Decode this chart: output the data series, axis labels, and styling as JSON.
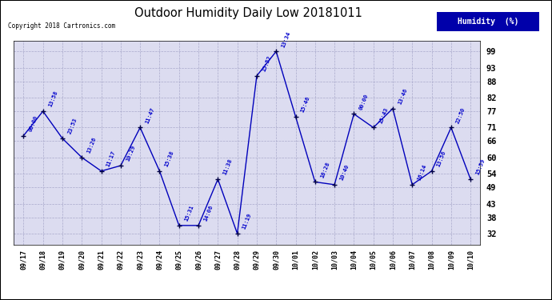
{
  "title": "Outdoor Humidity Daily Low 20181011",
  "copyright": "Copyright 2018 Cartronics.com",
  "legend_label": "Humidity  (%)",
  "x_labels": [
    "09/17",
    "09/18",
    "09/19",
    "09/20",
    "09/21",
    "09/22",
    "09/23",
    "09/24",
    "09/25",
    "09/26",
    "09/27",
    "09/28",
    "09/29",
    "09/30",
    "10/01",
    "10/02",
    "10/03",
    "10/04",
    "10/05",
    "10/06",
    "10/07",
    "10/08",
    "10/09",
    "10/10"
  ],
  "y_values": [
    68,
    77,
    67,
    60,
    55,
    57,
    71,
    55,
    35,
    35,
    52,
    32,
    90,
    99,
    75,
    51,
    50,
    76,
    71,
    78,
    50,
    55,
    71,
    52
  ],
  "time_labels": [
    "00:00",
    "13:58",
    "23:53",
    "13:26",
    "11:17",
    "10:29",
    "11:47",
    "15:38",
    "15:31",
    "14:06",
    "11:38",
    "11:19",
    "15:52",
    "13:34",
    "15:46",
    "16:28",
    "10:40",
    "00:00",
    "15:43",
    "13:46",
    "16:14",
    "13:56",
    "22:50",
    "15:59"
  ],
  "yticks": [
    32,
    38,
    43,
    49,
    54,
    60,
    66,
    71,
    77,
    82,
    88,
    93,
    99
  ],
  "ymin": 28,
  "ymax": 103,
  "line_color": "#0000bb",
  "marker_color": "#000044",
  "bg_color": "#dcdcf0",
  "grid_color": "#aaaacc",
  "text_color": "#0000cc",
  "title_color": "#000000",
  "legend_bg": "#0000aa",
  "legend_text": "#ffffff",
  "copyright_color": "#000000",
  "outer_bg": "#ffffff",
  "border_color": "#000000"
}
